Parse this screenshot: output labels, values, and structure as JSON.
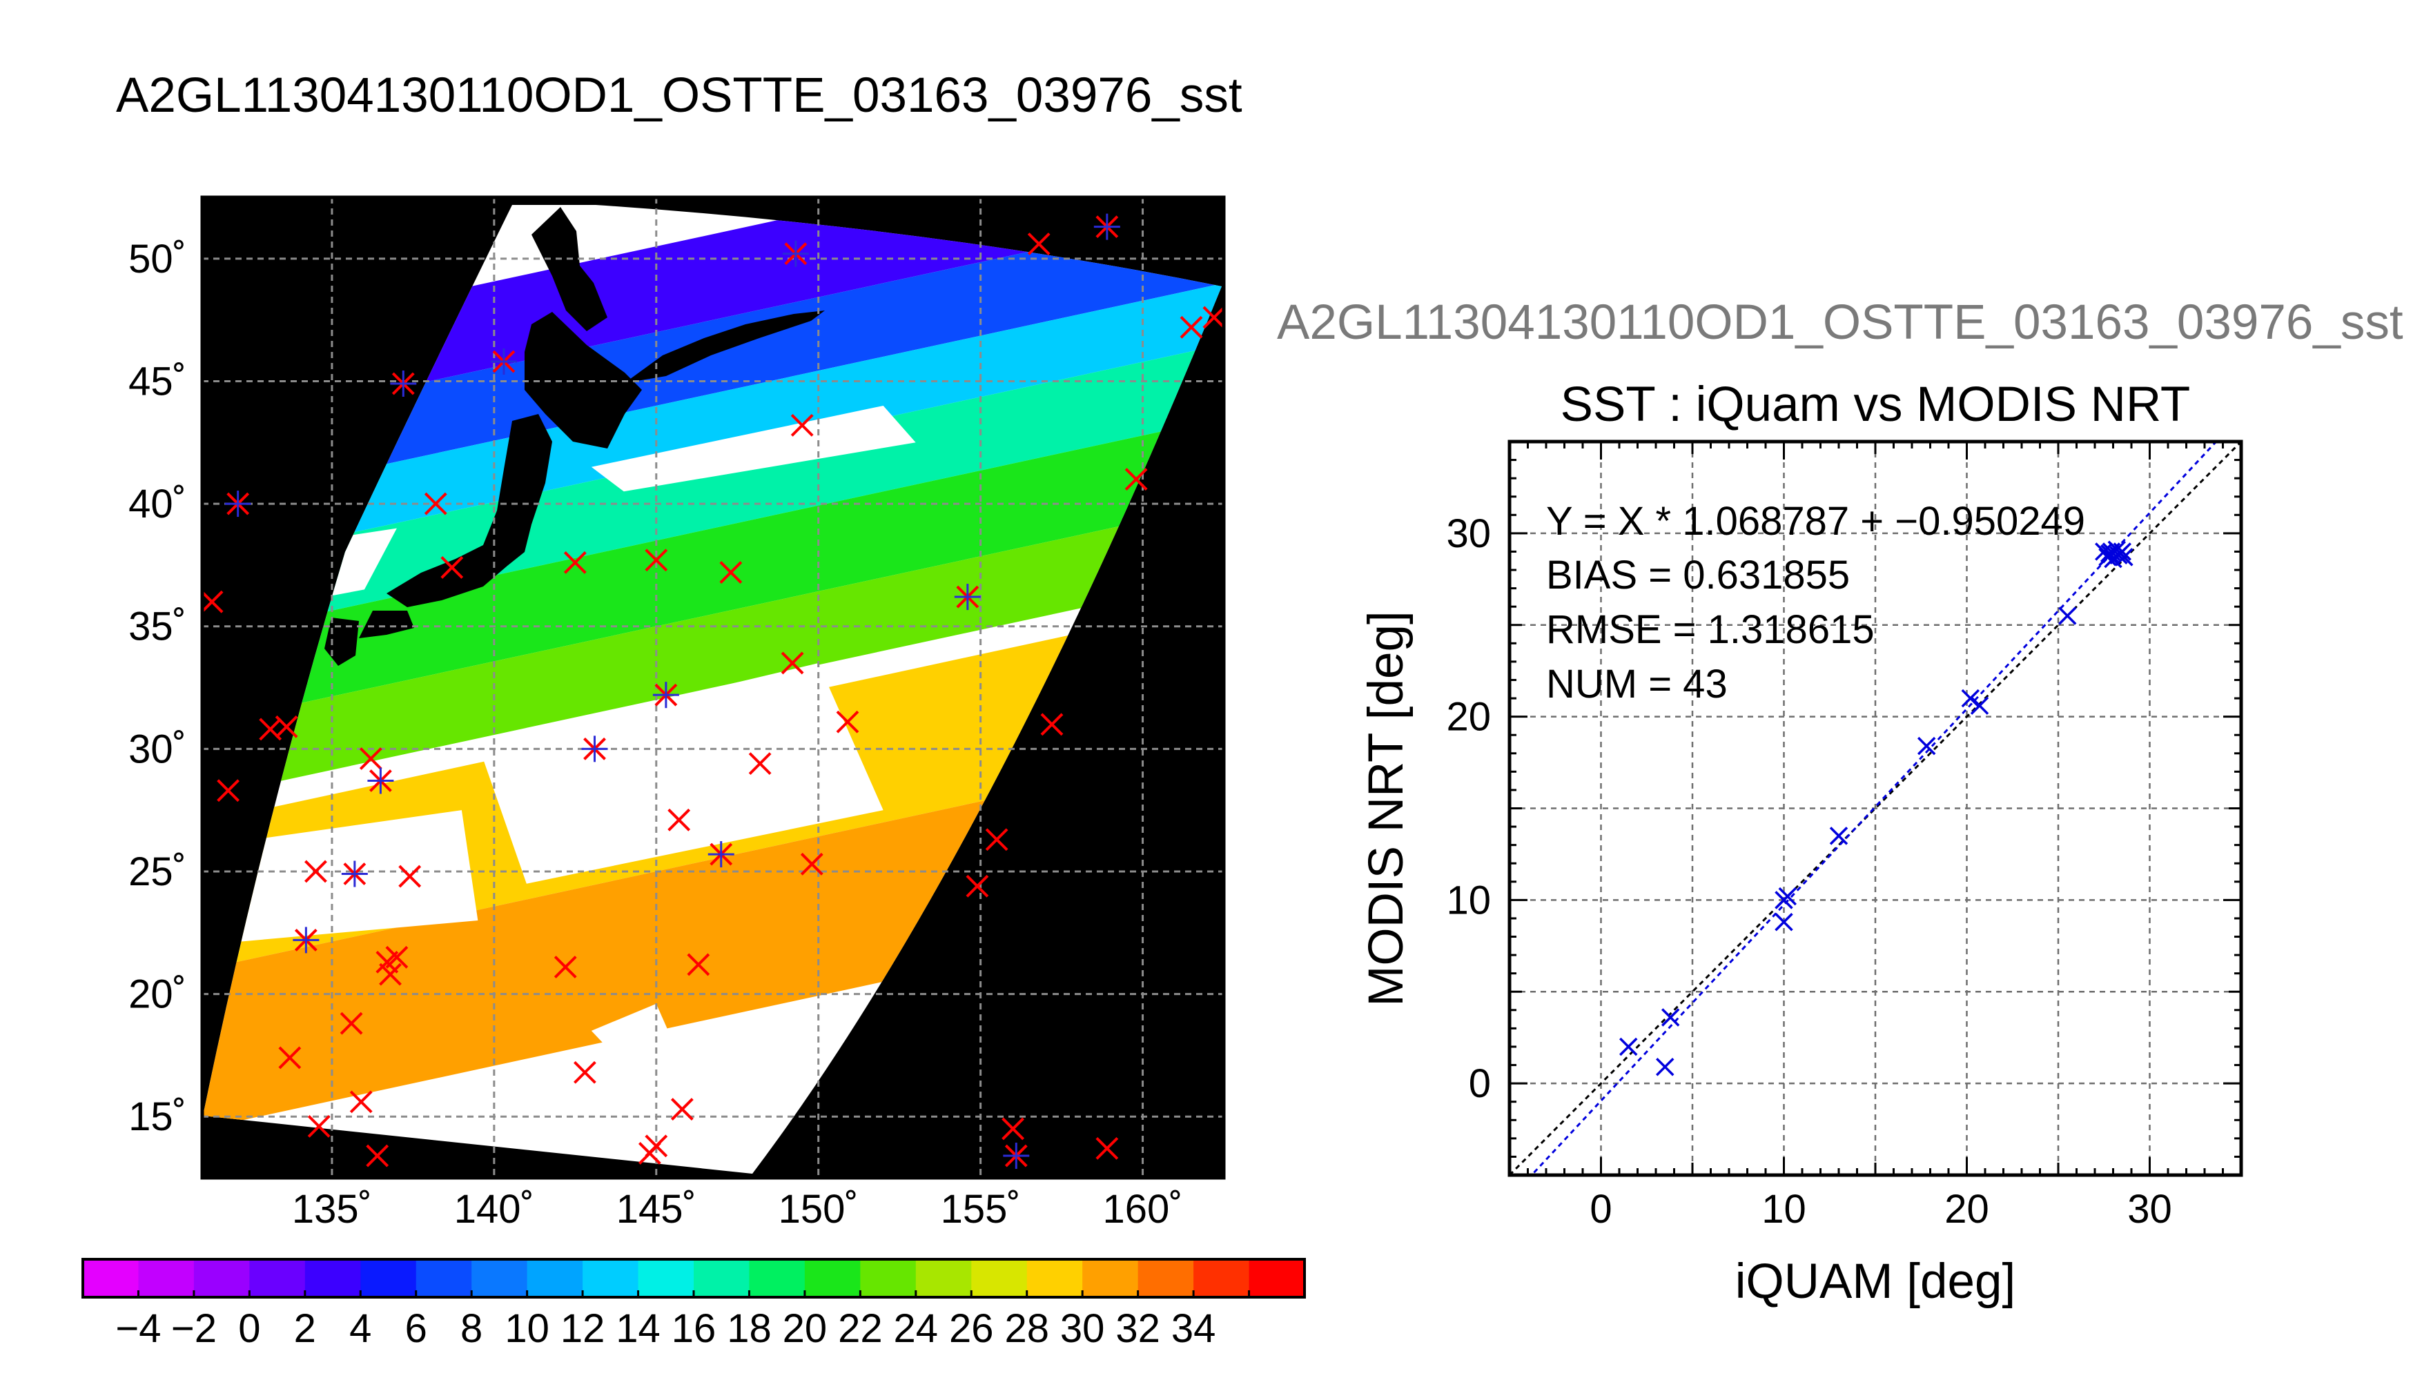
{
  "title": "A2GL11304130110OD1_OSTTE_03163_03976_sst",
  "map": {
    "lat_labels": [
      "50˚",
      "45˚",
      "40˚",
      "35˚",
      "30˚",
      "25˚",
      "20˚",
      "15˚"
    ],
    "lon_labels": [
      "135˚",
      "140˚",
      "145˚",
      "150˚",
      "155˚",
      "160˚"
    ],
    "lat_range": [
      12.5,
      52.5
    ],
    "lon_range": [
      131,
      162.5
    ],
    "colors": {
      "background": "#000000",
      "cloud": "#ffffff",
      "grid": "#8c8c8c",
      "land": "#000000",
      "marker_primary": "#ff0000",
      "marker_secondary": "#2b2bd6"
    }
  },
  "colorbar": {
    "labels": [
      "−4",
      "−2",
      "0",
      "2",
      "4",
      "6",
      "8",
      "10",
      "12",
      "14",
      "16",
      "18",
      "20",
      "22",
      "24",
      "26",
      "28",
      "30",
      "32",
      "34"
    ],
    "colors": [
      "#e400ff",
      "#c200ff",
      "#9a00ff",
      "#6a00ff",
      "#3c00ff",
      "#0a1aff",
      "#0a4cff",
      "#0a78ff",
      "#00a4ff",
      "#00cdff",
      "#00f0e6",
      "#00f2a8",
      "#00f060",
      "#1ae61a",
      "#66e600",
      "#a8e600",
      "#d8e600",
      "#ffd000",
      "#ffa000",
      "#ff6e00",
      "#ff3000",
      "#ff0000"
    ]
  },
  "scatter": {
    "filename": "A2GL11304130110OD1_OSTTE_03163_03976_sst",
    "title": "SST : iQuam vs MODIS NRT",
    "xlabel": "iQUAM [deg]",
    "ylabel": "MODIS NRT [deg]",
    "x_ticks": [
      "0",
      "10",
      "20",
      "30"
    ],
    "y_ticks": [
      "0",
      "10",
      "20",
      "30"
    ],
    "stats": {
      "fit": "Y = X * 1.068787 + −0.950249",
      "bias": "BIAS = 0.631855",
      "rmse": "RMSE = 1.318615",
      "num": "NUM = 43"
    },
    "marker_color": "#0000dd",
    "fit_line_color": "#0000dd",
    "identity_line_color": "#000000"
  },
  "chart_data": [
    {
      "type": "scatter",
      "title": "SST : iQuam vs MODIS NRT",
      "xlabel": "iQUAM [deg]",
      "ylabel": "MODIS NRT [deg]",
      "xlim": [
        -5,
        35
      ],
      "ylim": [
        -5,
        35
      ],
      "grid": true,
      "fit": {
        "slope": 1.068787,
        "intercept": -0.950249
      },
      "points": [
        [
          1.5,
          2.0
        ],
        [
          3.5,
          0.9
        ],
        [
          3.8,
          3.6
        ],
        [
          10.0,
          8.8
        ],
        [
          10.0,
          10.0
        ],
        [
          10.2,
          10.2
        ],
        [
          13.0,
          13.5
        ],
        [
          17.8,
          18.4
        ],
        [
          20.2,
          21.0
        ],
        [
          20.7,
          20.6
        ],
        [
          25.5,
          25.5
        ],
        [
          27.5,
          29.0
        ],
        [
          27.7,
          28.7
        ],
        [
          27.9,
          29.0
        ],
        [
          28.0,
          28.6
        ],
        [
          28.2,
          29.1
        ],
        [
          28.3,
          28.8
        ],
        [
          28.5,
          29.0
        ],
        [
          28.6,
          28.7
        ],
        [
          27.8,
          28.9
        ]
      ]
    },
    {
      "type": "heatmap",
      "title": "A2GL11304130110OD1_OSTTE_03163_03976_sst",
      "x_axis": "longitude",
      "y_axis": "latitude",
      "xlim": [
        131,
        162.5
      ],
      "ylim": [
        12.5,
        52.5
      ],
      "colorbar_range": [
        -5,
        35
      ],
      "sst_bands": [
        {
          "lat_min": 43,
          "lat_max": 46.5,
          "value": 3
        },
        {
          "lat_min": 40,
          "lat_max": 43,
          "value": 7
        },
        {
          "lat_min": 37.5,
          "lat_max": 40,
          "value": 12
        },
        {
          "lat_min": 34.5,
          "lat_max": 37.5,
          "value": 16
        },
        {
          "lat_min": 31,
          "lat_max": 34.5,
          "value": 20
        },
        {
          "lat_min": 28,
          "lat_max": 31,
          "value": 22
        },
        {
          "lat_min": 21,
          "lat_max": 27,
          "value": 26
        },
        {
          "lat_min": 14.5,
          "lat_max": 21,
          "value": 29
        }
      ],
      "matchups": [
        [
          131.3,
          36
        ],
        [
          131.8,
          28.3
        ],
        [
          132.1,
          40
        ],
        [
          133.1,
          30.8
        ],
        [
          133.6,
          30.9
        ],
        [
          133.7,
          17.4
        ],
        [
          134.2,
          22.2
        ],
        [
          134.5,
          25
        ],
        [
          134.6,
          14.6
        ],
        [
          135.6,
          18.8
        ],
        [
          135.7,
          24.9
        ],
        [
          135.9,
          15.6
        ],
        [
          136.2,
          29.6
        ],
        [
          136.4,
          13.4
        ],
        [
          136.5,
          28.7
        ],
        [
          136.7,
          21.3
        ],
        [
          136.8,
          20.8
        ],
        [
          137,
          21.5
        ],
        [
          137.2,
          44.9
        ],
        [
          137.4,
          24.8
        ],
        [
          138.2,
          40
        ],
        [
          138.7,
          37.4
        ],
        [
          140.3,
          45.8
        ],
        [
          142.2,
          21.1
        ],
        [
          142.5,
          37.6
        ],
        [
          142.8,
          16.8
        ],
        [
          143.1,
          30
        ],
        [
          144.8,
          13.5
        ],
        [
          145,
          13.8
        ],
        [
          145,
          37.7
        ],
        [
          145.3,
          32.2
        ],
        [
          145.7,
          27.1
        ],
        [
          145.8,
          15.3
        ],
        [
          146.3,
          21.2
        ],
        [
          147,
          25.7
        ],
        [
          147.3,
          37.2
        ],
        [
          148.2,
          29.4
        ],
        [
          149.2,
          33.5
        ],
        [
          149.3,
          50.2
        ],
        [
          149.5,
          43.2
        ],
        [
          149.8,
          25.3
        ],
        [
          150.9,
          31.1
        ],
        [
          154.6,
          36.2
        ],
        [
          154.9,
          24.4
        ],
        [
          155.5,
          26.3
        ],
        [
          156,
          14.5
        ],
        [
          156.1,
          13.4
        ],
        [
          156.8,
          50.6
        ],
        [
          157.2,
          31
        ],
        [
          158.9,
          13.7
        ],
        [
          158.9,
          51.3
        ],
        [
          159.8,
          41
        ],
        [
          161.5,
          47.2
        ],
        [
          162.2,
          47.6
        ]
      ]
    }
  ]
}
